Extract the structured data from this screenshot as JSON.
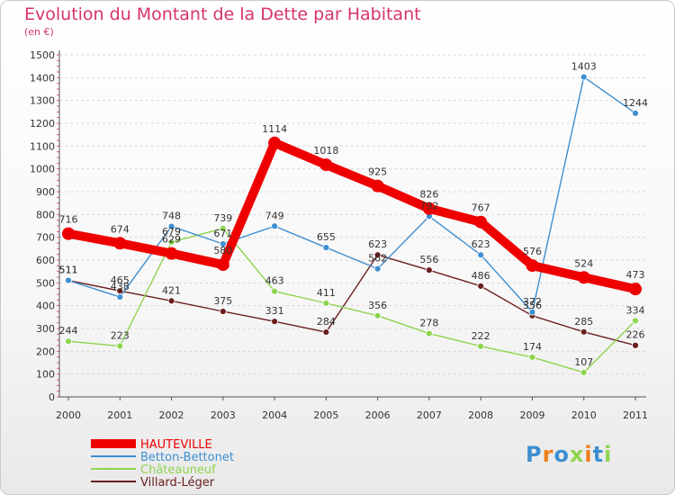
{
  "chart_data": {
    "type": "line",
    "title": "Evolution du Montant de la Dette par Habitant",
    "subtitle": "(en €)",
    "xlabel": "",
    "ylabel": "",
    "categories": [
      "2000",
      "2001",
      "2002",
      "2003",
      "2004",
      "2005",
      "2006",
      "2007",
      "2008",
      "2009",
      "2010",
      "2011"
    ],
    "ylim": [
      0,
      1500
    ],
    "yticks": [
      0,
      100,
      200,
      300,
      400,
      500,
      600,
      700,
      800,
      900,
      1000,
      1100,
      1200,
      1300,
      1400,
      1500
    ],
    "grid": "horizontal dashed",
    "legend_position": "bottom-left",
    "series": [
      {
        "name": "HAUTEVILLE",
        "color": "#ee0000",
        "values": [
          716,
          674,
          629,
          580,
          1114,
          1018,
          925,
          826,
          767,
          576,
          524,
          473
        ]
      },
      {
        "name": "Betton-Bettonet",
        "color": "#3d8fd1",
        "values": [
          511,
          438,
          748,
          671,
          749,
          655,
          562,
          792,
          623,
          372,
          1403,
          1244
        ]
      },
      {
        "name": "Châteauneuf",
        "color": "#8fd44f",
        "values": [
          244,
          223,
          679,
          739,
          463,
          411,
          356,
          278,
          222,
          174,
          107,
          334
        ]
      },
      {
        "name": "Villard-Léger",
        "color": "#6b1e1e",
        "values": [
          511,
          465,
          421,
          375,
          331,
          284,
          623,
          556,
          486,
          356,
          285,
          226
        ]
      }
    ]
  },
  "logo": {
    "text": "Proxiti",
    "letter_colors": [
      "#3d8fd1",
      "#ee7f1a",
      "#3d8fd1",
      "#8fd44f",
      "#ee7f1a",
      "#3d8fd1",
      "#8fd44f"
    ]
  }
}
